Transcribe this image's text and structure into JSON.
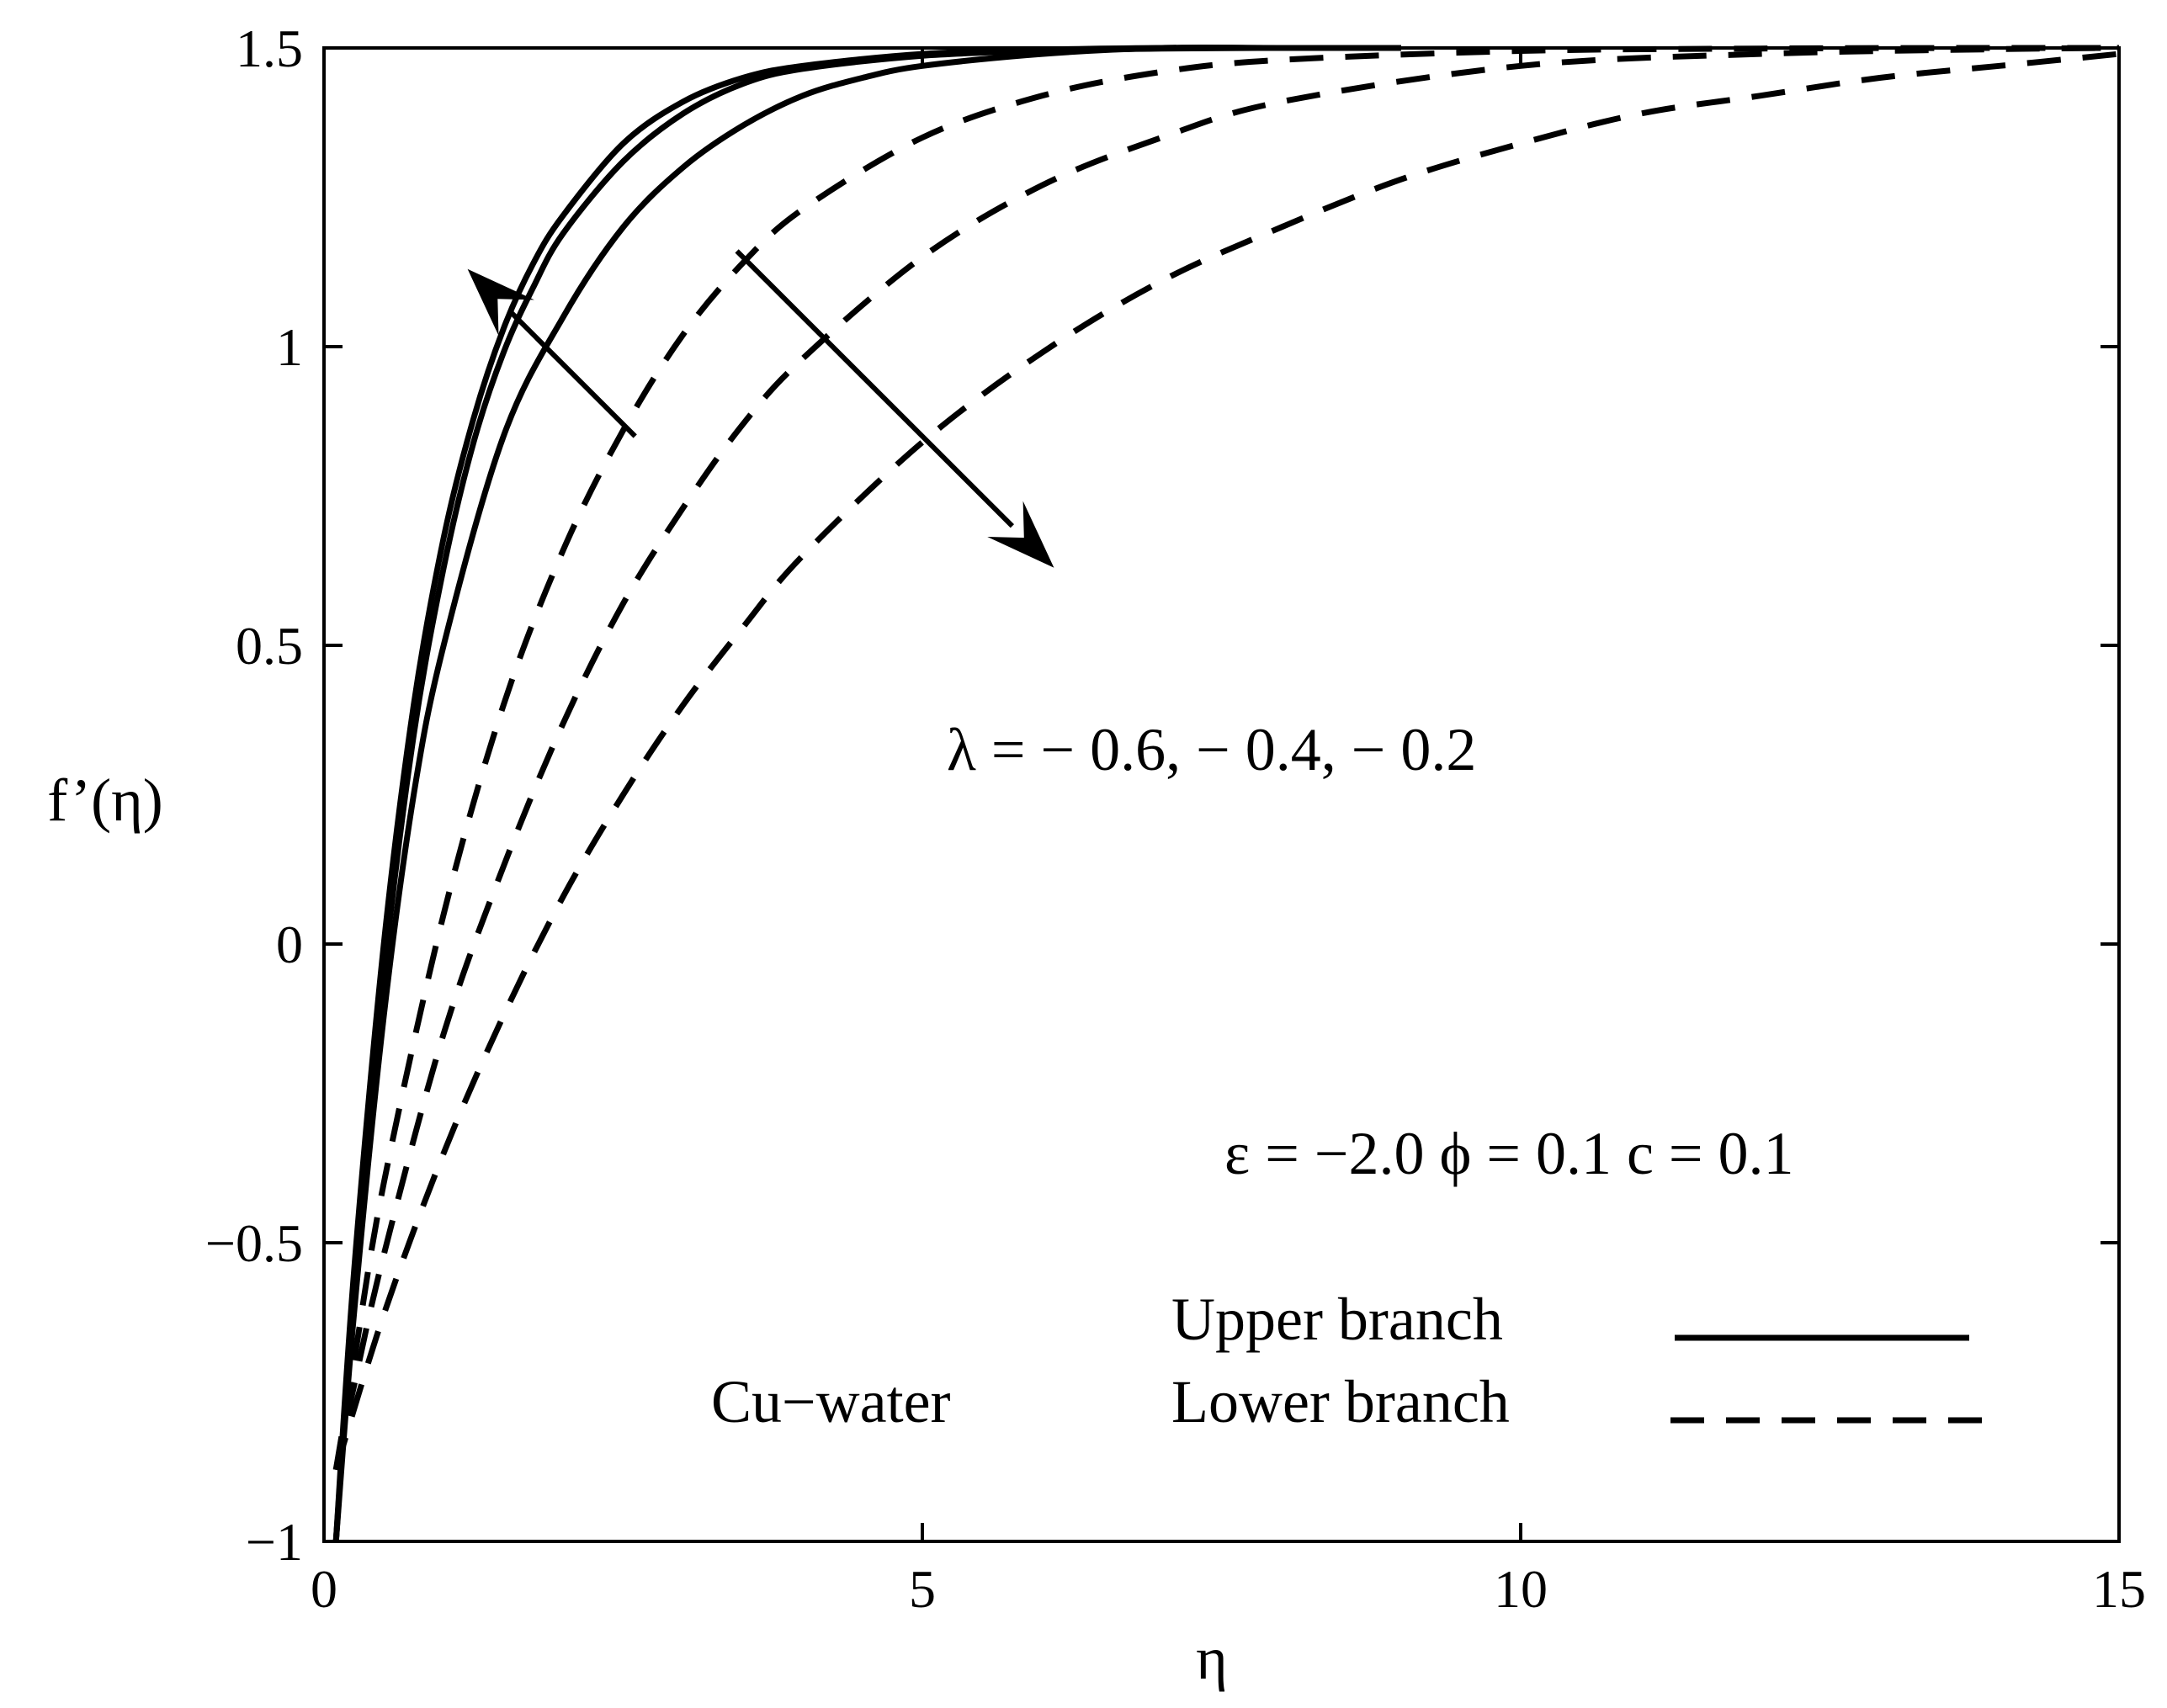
{
  "chart_data": {
    "type": "line",
    "xlabel": "η",
    "ylabel": "f’(η)",
    "xlim": [
      0,
      15
    ],
    "ylim": [
      -1,
      1.5
    ],
    "xticks": [
      0,
      5,
      10,
      15
    ],
    "xtick_labels": [
      "0",
      "5",
      "10",
      "15"
    ],
    "yticks": [
      -1,
      -0.5,
      0,
      0.5,
      1,
      1.5
    ],
    "ytick_labels": [
      "−1",
      "−0.5",
      "0",
      "0.5",
      "1",
      "1.5"
    ],
    "grid": false,
    "legend": {
      "placement": "bottom-right",
      "entries": [
        {
          "label": "Upper branch",
          "style": "solid"
        },
        {
          "label": "Lower branch",
          "style": "dashed"
        }
      ]
    },
    "annotations": {
      "lambda": "λ = − 0.6, − 0.4, − 0.2",
      "params": "ε = −2.0   ϕ = 0.1   c = 0.1",
      "fluid": "Cu−water"
    },
    "series": [
      {
        "branch": "Upper branch",
        "style": "solid",
        "x": [
          0.1,
          0.25,
          0.5,
          0.75,
          1.0,
          1.25,
          1.5,
          1.75,
          2.0,
          2.5,
          3.0,
          3.5,
          4.0,
          5.0,
          6.0,
          7.0,
          8.0,
          9.0
        ],
        "y": [
          -1.0,
          -0.55,
          0.0,
          0.4,
          0.68,
          0.88,
          1.03,
          1.14,
          1.22,
          1.34,
          1.41,
          1.45,
          1.47,
          1.49,
          1.497,
          1.5,
          1.5,
          1.5
        ]
      },
      {
        "branch": "Upper branch",
        "style": "solid",
        "x": [
          0.1,
          0.25,
          0.5,
          0.75,
          1.0,
          1.25,
          1.5,
          1.75,
          2.0,
          2.5,
          3.0,
          3.5,
          4.0,
          5.0,
          6.0,
          7.0,
          8.0,
          9.0
        ],
        "y": [
          -1.0,
          -0.58,
          -0.05,
          0.35,
          0.63,
          0.84,
          0.99,
          1.1,
          1.19,
          1.31,
          1.39,
          1.44,
          1.465,
          1.487,
          1.495,
          1.499,
          1.5,
          1.5
        ]
      },
      {
        "branch": "Upper branch",
        "style": "solid",
        "x": [
          0.1,
          0.25,
          0.5,
          0.75,
          1.0,
          1.5,
          2.0,
          2.5,
          3.0,
          3.5,
          4.0,
          4.5,
          5.0,
          6.0,
          7.0,
          8.0,
          9.0
        ],
        "y": [
          -1.0,
          -0.62,
          -0.12,
          0.25,
          0.5,
          0.85,
          1.05,
          1.2,
          1.3,
          1.37,
          1.42,
          1.45,
          1.47,
          1.49,
          1.5,
          1.5,
          1.5
        ]
      },
      {
        "branch": "Lower branch",
        "style": "dashed",
        "x": [
          0.1,
          0.25,
          0.5,
          1.0,
          1.5,
          2.0,
          2.5,
          3.0,
          3.5,
          4.0,
          5.0,
          6.0,
          7.0,
          8.0,
          10.0,
          12.0,
          14.0,
          15.0
        ],
        "y": [
          -0.88,
          -0.7,
          -0.4,
          0.05,
          0.4,
          0.66,
          0.86,
          1.02,
          1.14,
          1.23,
          1.35,
          1.42,
          1.46,
          1.48,
          1.495,
          1.499,
          1.5,
          1.5
        ]
      },
      {
        "branch": "Lower branch",
        "style": "dashed",
        "x": [
          0.1,
          0.25,
          0.5,
          1.0,
          1.5,
          2.0,
          2.5,
          3.0,
          3.5,
          4.0,
          5.0,
          6.0,
          7.0,
          8.0,
          10.0,
          12.0,
          14.0,
          15.0
        ],
        "y": [
          -0.88,
          -0.74,
          -0.52,
          -0.15,
          0.13,
          0.37,
          0.57,
          0.73,
          0.87,
          0.98,
          1.15,
          1.27,
          1.35,
          1.41,
          1.47,
          1.49,
          1.498,
          1.5
        ]
      },
      {
        "branch": "Lower branch",
        "style": "dashed",
        "x": [
          0.1,
          0.5,
          1.0,
          1.5,
          2.0,
          2.5,
          3.0,
          3.5,
          4.0,
          5.0,
          6.0,
          7.0,
          8.0,
          9.0,
          10.0,
          11.0,
          12.0,
          13.0,
          14.0,
          15.0
        ],
        "y": [
          -0.88,
          -0.62,
          -0.35,
          -0.12,
          0.08,
          0.25,
          0.4,
          0.53,
          0.65,
          0.84,
          0.99,
          1.11,
          1.2,
          1.28,
          1.34,
          1.39,
          1.42,
          1.45,
          1.47,
          1.49
        ]
      }
    ],
    "arrows": [
      {
        "from": [
          2.6,
          0.85
        ],
        "to": [
          1.2,
          1.13
        ]
      },
      {
        "from": [
          3.45,
          1.16
        ],
        "to": [
          6.1,
          0.63
        ]
      }
    ]
  }
}
